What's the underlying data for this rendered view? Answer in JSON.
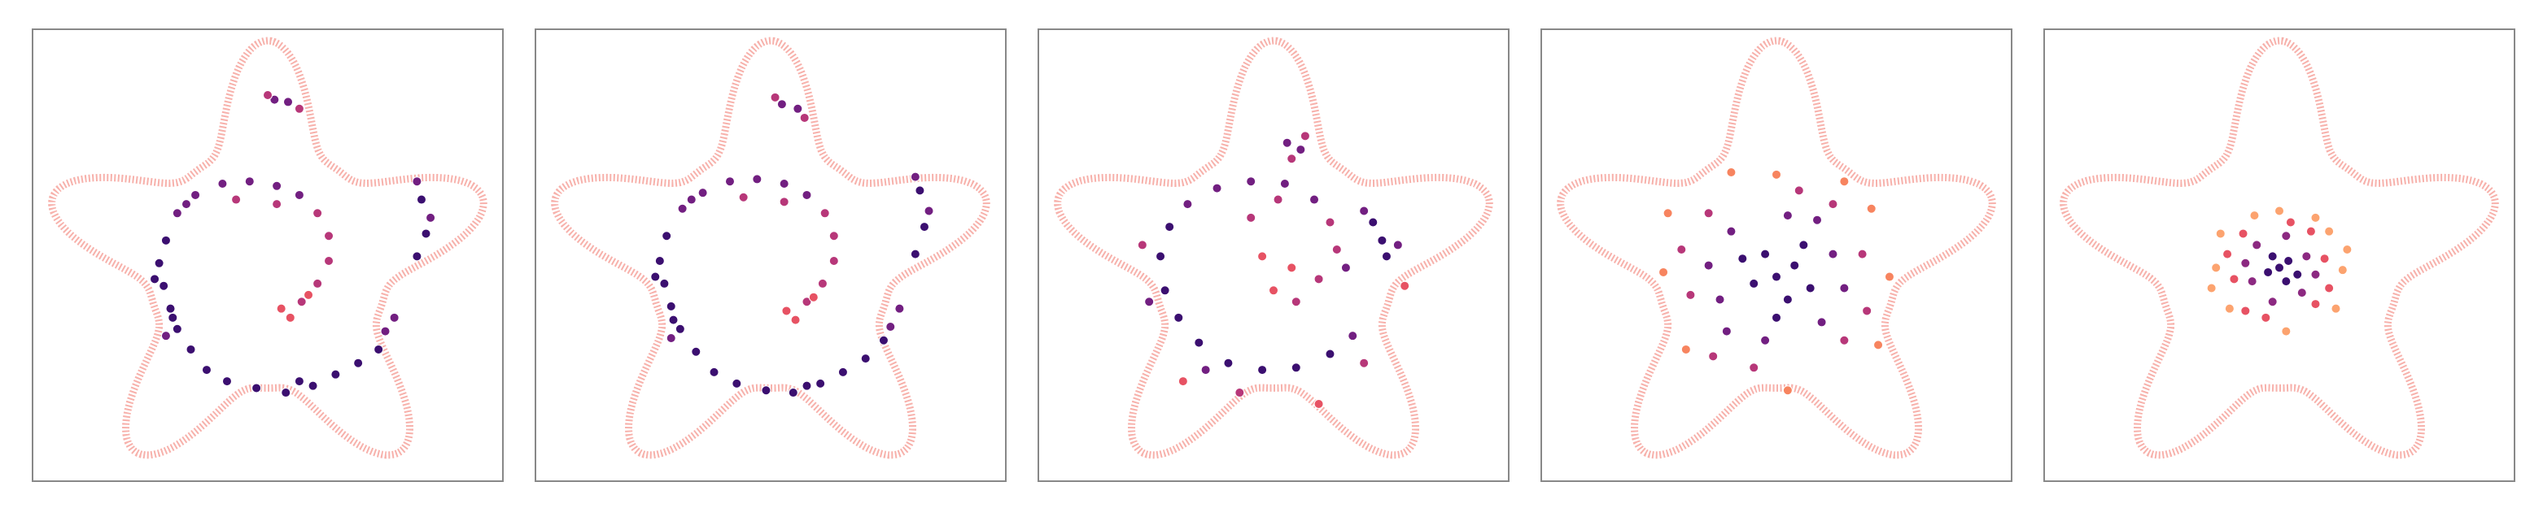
{
  "chart_data": [
    {
      "type": "scatter",
      "xlim": [
        -1.04,
        1.04
      ],
      "ylim": [
        -0.94,
        1.05
      ],
      "outline_color": "#f6a39c",
      "series": [
        {
          "color": "#3b0f70",
          "x": [
            -0.45,
            -0.48,
            -0.46,
            -0.43,
            -0.4,
            -0.34,
            -0.27,
            -0.18,
            -0.05,
            0.08,
            0.2,
            0.3,
            0.4,
            0.49,
            0.68,
            0.7,
            0.66,
            -0.5,
            -0.42,
            0.14
          ],
          "y": [
            0.12,
            0.02,
            -0.08,
            -0.18,
            -0.27,
            -0.36,
            -0.45,
            -0.5,
            -0.53,
            -0.55,
            -0.52,
            -0.47,
            -0.42,
            -0.36,
            0.3,
            0.15,
            0.05,
            -0.05,
            -0.22,
            -0.5
          ]
        },
        {
          "color": "#721f81",
          "x": [
            -0.4,
            -0.32,
            -0.2,
            -0.08,
            0.04,
            0.14,
            0.52,
            0.56,
            0.66,
            0.72,
            0.03,
            0.09,
            -0.36,
            -0.45
          ],
          "y": [
            0.24,
            0.32,
            0.37,
            0.38,
            0.36,
            0.32,
            -0.28,
            -0.22,
            0.38,
            0.22,
            0.74,
            0.73,
            0.28,
            -0.3
          ]
        },
        {
          "color": "#b73779",
          "x": [
            0.22,
            0.27,
            0.27,
            0.22,
            0.15,
            0.0,
            0.14,
            -0.14,
            0.04
          ],
          "y": [
            0.24,
            0.14,
            0.03,
            -0.07,
            -0.15,
            0.76,
            0.7,
            0.3,
            0.28
          ]
        },
        {
          "color": "#e75263",
          "x": [
            0.1,
            0.18,
            0.06
          ],
          "y": [
            -0.22,
            -0.12,
            -0.18
          ]
        }
      ]
    },
    {
      "type": "scatter",
      "xlim": [
        -1.04,
        1.04
      ],
      "ylim": [
        -0.94,
        1.05
      ],
      "outline_color": "#f6a39c",
      "series": [
        {
          "color": "#3b0f70",
          "x": [
            -0.46,
            -0.49,
            -0.47,
            -0.44,
            -0.4,
            -0.33,
            -0.25,
            -0.15,
            -0.02,
            0.1,
            0.22,
            0.32,
            0.42,
            0.5,
            0.66,
            0.68,
            0.64,
            -0.51,
            -0.43,
            0.16
          ],
          "y": [
            0.14,
            0.03,
            -0.07,
            -0.17,
            -0.27,
            -0.37,
            -0.46,
            -0.51,
            -0.54,
            -0.55,
            -0.51,
            -0.46,
            -0.4,
            -0.32,
            0.34,
            0.18,
            0.06,
            -0.04,
            -0.23,
            -0.52
          ]
        },
        {
          "color": "#721f81",
          "x": [
            -0.39,
            -0.3,
            -0.18,
            -0.06,
            0.06,
            0.16,
            0.53,
            0.57,
            0.64,
            0.7,
            0.05,
            0.12,
            -0.35,
            -0.44
          ],
          "y": [
            0.26,
            0.33,
            0.38,
            0.39,
            0.37,
            0.32,
            -0.26,
            -0.18,
            0.4,
            0.25,
            0.72,
            0.7,
            0.3,
            -0.31
          ]
        },
        {
          "color": "#b73779",
          "x": [
            0.24,
            0.28,
            0.28,
            0.23,
            0.16,
            0.02,
            0.15,
            -0.12,
            0.06
          ],
          "y": [
            0.24,
            0.14,
            0.03,
            -0.07,
            -0.15,
            0.75,
            0.66,
            0.31,
            0.29
          ]
        },
        {
          "color": "#e75263",
          "x": [
            0.11,
            0.19,
            0.07
          ],
          "y": [
            -0.23,
            -0.13,
            -0.19
          ]
        }
      ]
    },
    {
      "type": "scatter",
      "xlim": [
        -1.04,
        1.04
      ],
      "ylim": [
        -0.94,
        1.05
      ],
      "outline_color": "#f6a39c",
      "series": [
        {
          "color": "#3b0f70",
          "x": [
            -0.5,
            -0.48,
            -0.42,
            -0.33,
            -0.2,
            -0.05,
            0.1,
            0.25,
            0.48,
            0.5,
            0.44,
            -0.46
          ],
          "y": [
            0.05,
            -0.1,
            -0.22,
            -0.33,
            -0.42,
            -0.45,
            -0.44,
            -0.38,
            0.12,
            0.05,
            0.2,
            0.18
          ]
        },
        {
          "color": "#721f81",
          "x": [
            -0.38,
            -0.25,
            -0.1,
            0.05,
            0.18,
            0.35,
            0.4,
            0.55,
            -0.55,
            -0.3,
            0.06,
            0.12,
            0.32
          ],
          "y": [
            0.28,
            0.35,
            0.38,
            0.37,
            0.3,
            -0.3,
            0.25,
            0.1,
            -0.15,
            -0.45,
            0.55,
            0.52,
            0.0
          ]
        },
        {
          "color": "#b73779",
          "x": [
            0.25,
            0.28,
            0.2,
            0.1,
            -0.1,
            0.14,
            0.08,
            -0.15,
            0.4,
            -0.58,
            0.02
          ],
          "y": [
            0.2,
            0.08,
            -0.05,
            -0.15,
            0.22,
            0.58,
            0.48,
            -0.55,
            -0.42,
            0.1,
            0.3
          ]
        },
        {
          "color": "#e75263",
          "x": [
            0.0,
            0.08,
            -0.05,
            0.2,
            -0.4,
            0.58
          ],
          "y": [
            -0.1,
            0.0,
            0.05,
            -0.6,
            -0.5,
            -0.08
          ]
        }
      ]
    },
    {
      "type": "scatter",
      "xlim": [
        -1.04,
        1.04
      ],
      "ylim": [
        -0.94,
        1.05
      ],
      "outline_color": "#f6a39c",
      "series": [
        {
          "color": "#3b0f70",
          "x": [
            0,
            0.08,
            -0.1,
            0.05,
            -0.05,
            0.15,
            -0.15,
            0.0,
            0.12
          ],
          "y": [
            -0.04,
            0.01,
            -0.07,
            -0.14,
            0.06,
            -0.09,
            0.04,
            -0.22,
            0.1
          ]
        },
        {
          "color": "#721f81",
          "x": [
            0.25,
            -0.25,
            0.2,
            -0.2,
            0.05,
            -0.05,
            0.3,
            -0.3,
            0.18,
            -0.22
          ],
          "y": [
            0.06,
            -0.14,
            -0.24,
            0.16,
            0.23,
            -0.32,
            -0.09,
            0.01,
            0.21,
            -0.28
          ]
        },
        {
          "color": "#b73779",
          "x": [
            0.38,
            -0.38,
            0.3,
            -0.3,
            0.1,
            -0.1,
            0.4,
            -0.42,
            0.25,
            -0.28
          ],
          "y": [
            0.06,
            -0.12,
            -0.32,
            0.24,
            0.34,
            -0.44,
            -0.19,
            0.08,
            0.28,
            -0.39
          ]
        },
        {
          "color": "#f7845f",
          "x": [
            0.5,
            -0.5,
            0.42,
            -0.4,
            0.0,
            0.05,
            0.45,
            -0.48,
            0.3,
            -0.2
          ],
          "y": [
            -0.04,
            -0.02,
            0.26,
            -0.36,
            0.41,
            -0.54,
            -0.34,
            0.24,
            0.38,
            0.42
          ]
        }
      ]
    },
    {
      "type": "scatter",
      "xlim": [
        -1.04,
        1.04
      ],
      "ylim": [
        -0.94,
        1.05
      ],
      "outline_color": "#f6a39c",
      "series": [
        {
          "color": "#3b0f70",
          "x": [
            0,
            0.04,
            -0.05,
            0.03,
            -0.03,
            0.08
          ],
          "y": [
            0,
            0.03,
            -0.02,
            -0.06,
            0.05,
            -0.03
          ]
        },
        {
          "color": "#8c2981",
          "x": [
            0.12,
            -0.12,
            0.1,
            -0.1,
            0.03,
            -0.03,
            0.16,
            -0.15
          ],
          "y": [
            0.05,
            -0.06,
            -0.11,
            0.1,
            0.14,
            -0.15,
            -0.03,
            0.02
          ]
        },
        {
          "color": "#e75263",
          "x": [
            0.2,
            -0.2,
            0.16,
            -0.16,
            0.05,
            -0.06,
            0.22,
            -0.23,
            0.14,
            -0.15
          ],
          "y": [
            0.04,
            -0.05,
            -0.16,
            0.15,
            0.2,
            -0.22,
            -0.09,
            0.06,
            0.16,
            -0.19
          ]
        },
        {
          "color": "#fca36f",
          "x": [
            0.28,
            -0.28,
            0.22,
            -0.22,
            0.0,
            0.03,
            0.25,
            -0.26,
            0.16,
            -0.11,
            -0.3,
            0.3
          ],
          "y": [
            -0.01,
            0.0,
            0.16,
            -0.18,
            0.25,
            -0.28,
            -0.18,
            0.15,
            0.22,
            0.23,
            -0.09,
            0.08
          ]
        }
      ]
    }
  ]
}
